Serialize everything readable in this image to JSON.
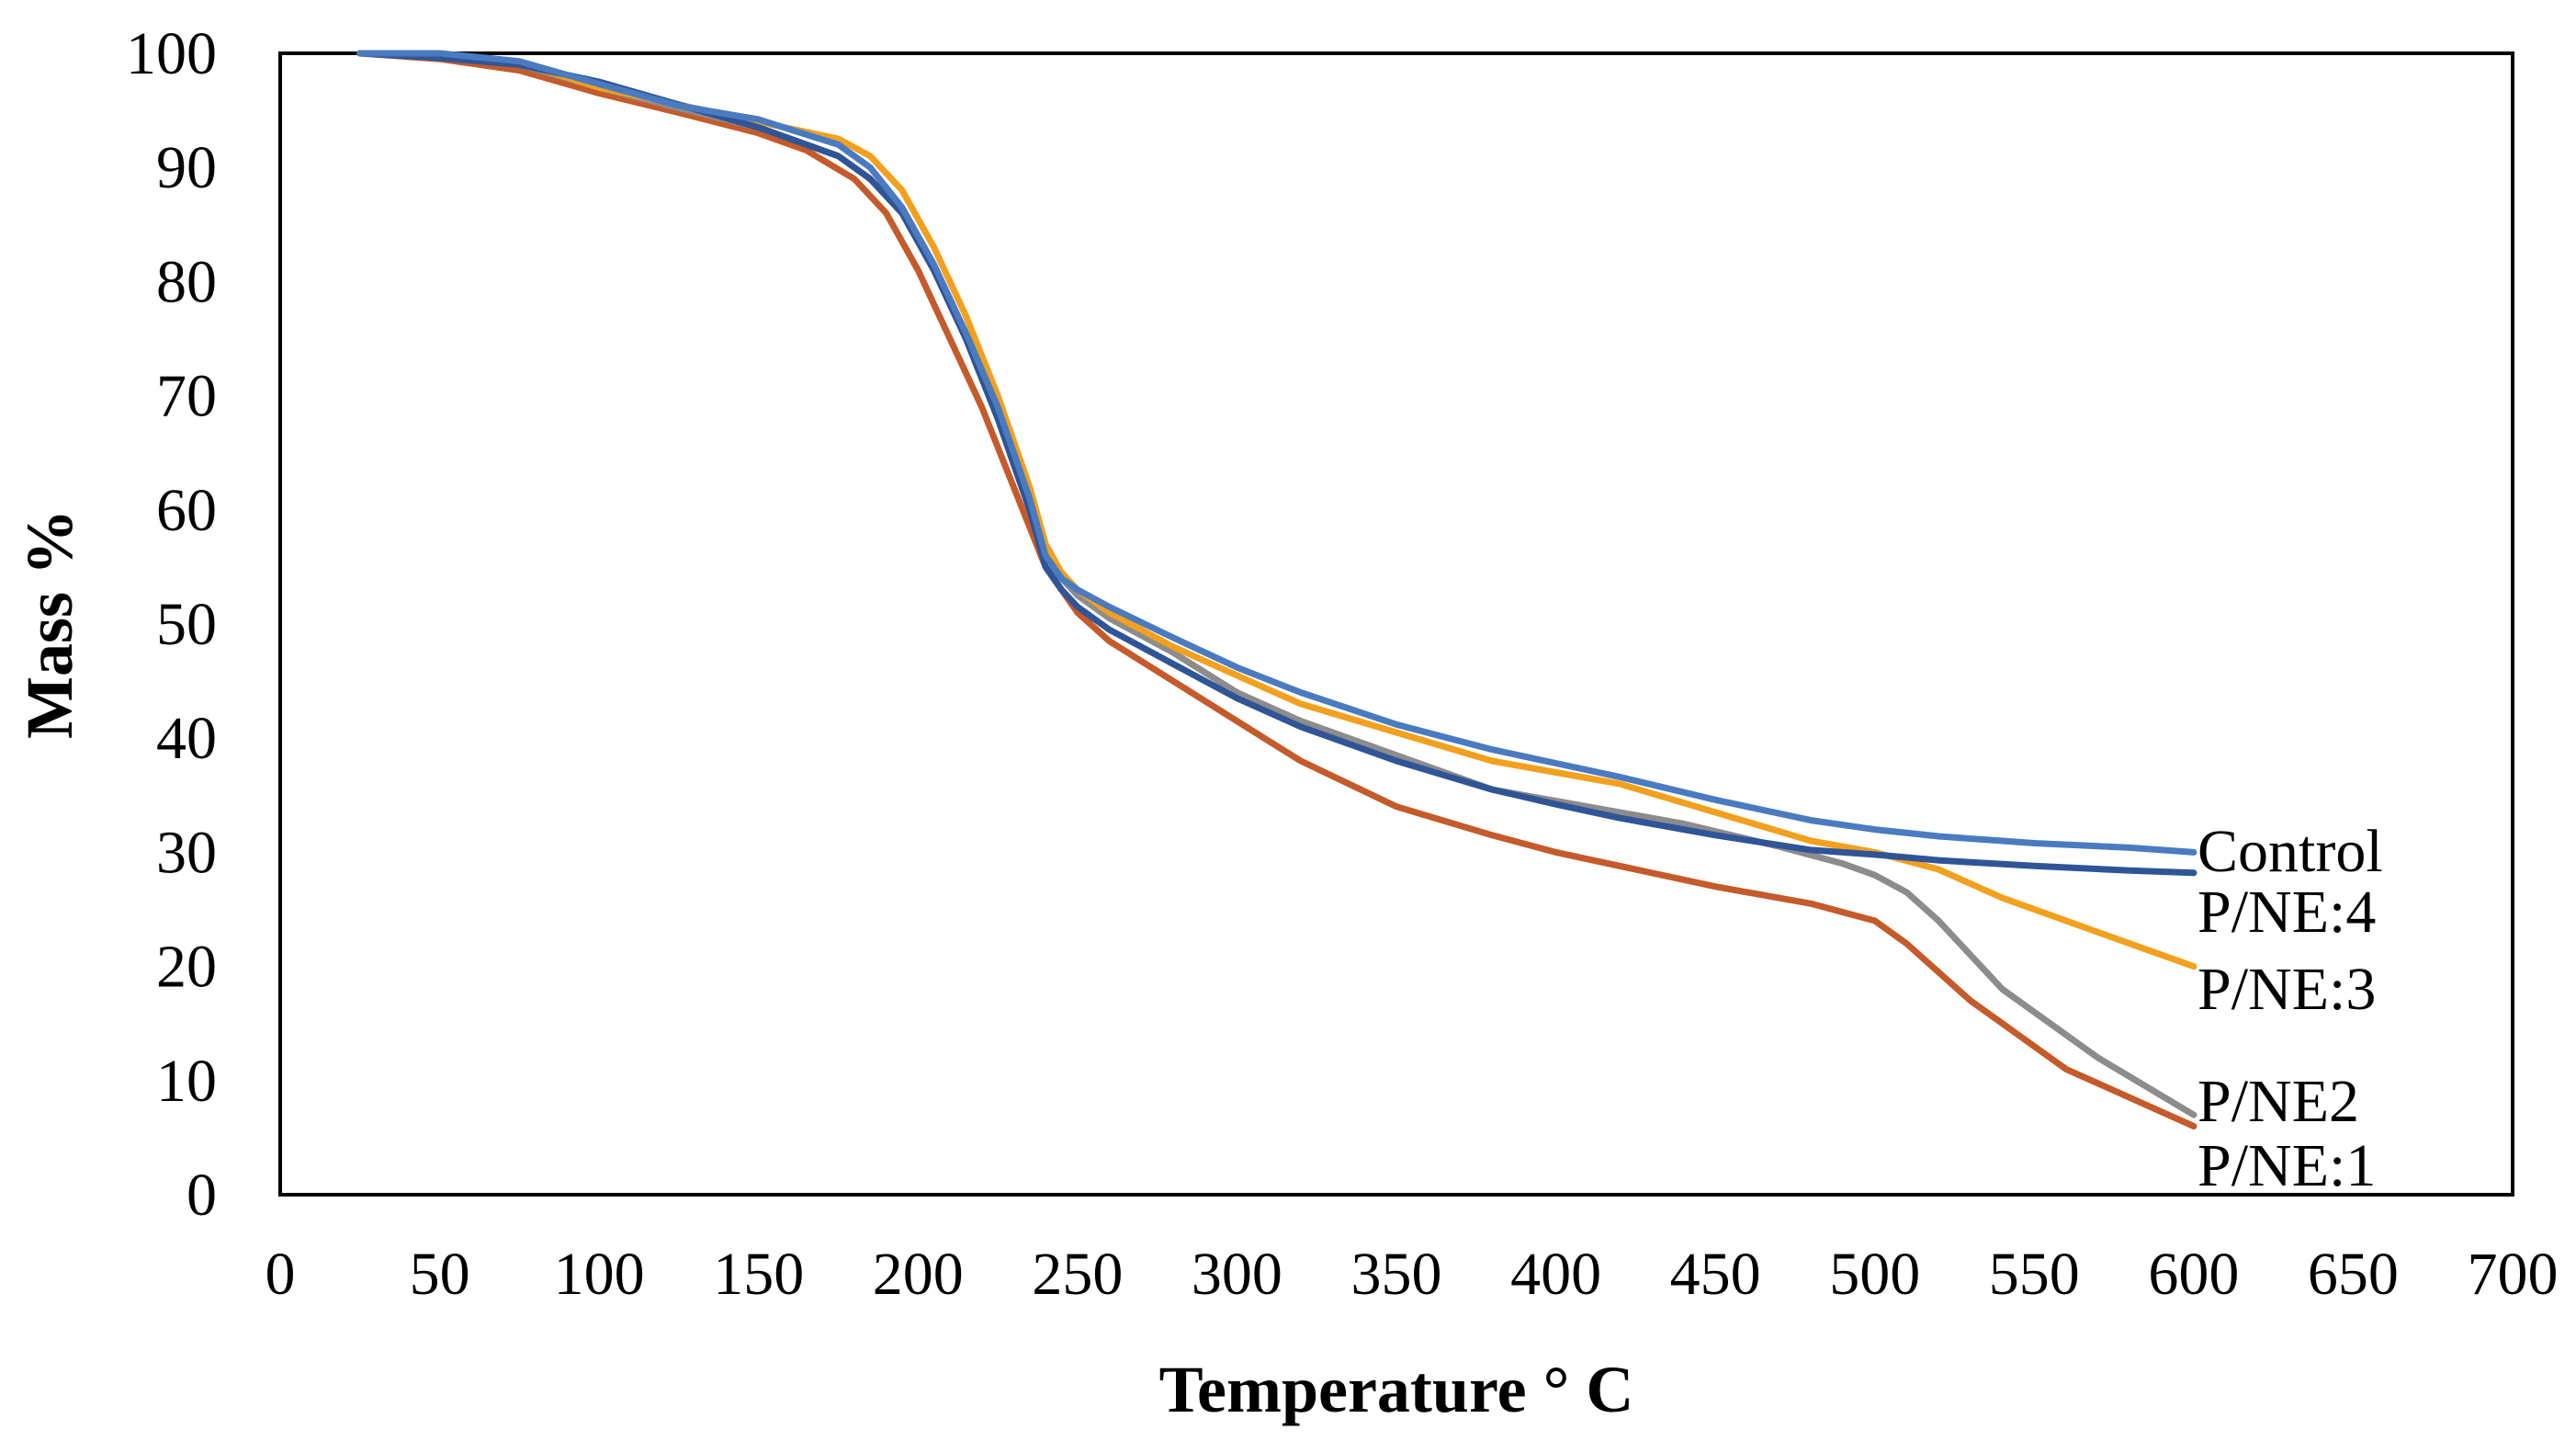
{
  "chart_data": {
    "type": "line",
    "title": "",
    "xlabel": "Temperature ° C",
    "ylabel": "Mass %",
    "xlim": [
      0,
      700
    ],
    "ylim": [
      0,
      100
    ],
    "xticks": [
      0,
      50,
      100,
      150,
      200,
      250,
      300,
      350,
      400,
      450,
      500,
      550,
      600,
      650,
      700
    ],
    "yticks": [
      0,
      10,
      20,
      30,
      40,
      50,
      60,
      70,
      80,
      90,
      100
    ],
    "grid": false,
    "legend": "inline labels at line ends (right)",
    "series": [
      {
        "name": "P/NE:1",
        "color": "#C55A2A",
        "x": [
          25,
          50,
          75,
          100,
          125,
          150,
          165,
          180,
          190,
          200,
          210,
          220,
          230,
          240,
          250,
          260,
          280,
          300,
          320,
          350,
          380,
          400,
          450,
          480,
          500,
          510,
          530,
          560,
          600
        ],
        "y": [
          100,
          99.5,
          98.5,
          96.5,
          94.8,
          93,
          91.5,
          89,
          86,
          81,
          75,
          69,
          62,
          55,
          51,
          48.5,
          45,
          41.5,
          38,
          34,
          31.5,
          30,
          27,
          25.5,
          24,
          22,
          17,
          11,
          6
        ]
      },
      {
        "name": "P/NE2",
        "color": "#8C8C8C",
        "x": [
          25,
          50,
          75,
          100,
          125,
          150,
          175,
          185,
          195,
          205,
          215,
          225,
          235,
          240,
          245,
          250,
          260,
          280,
          300,
          320,
          350,
          380,
          410,
          440,
          470,
          490,
          500,
          510,
          520,
          540,
          570,
          600
        ],
        "y": [
          100,
          99.7,
          99,
          97,
          95.2,
          93.5,
          91,
          89,
          86,
          81,
          75,
          68,
          60,
          56,
          54,
          52.5,
          50.5,
          47.5,
          44,
          41.5,
          38.5,
          35.5,
          34,
          32.5,
          30.5,
          29,
          28,
          26.5,
          24,
          18,
          12,
          7
        ]
      },
      {
        "name": "P/NE:3",
        "color": "#F2A01E",
        "x": [
          25,
          50,
          75,
          100,
          125,
          150,
          175,
          185,
          195,
          205,
          215,
          225,
          235,
          240,
          245,
          250,
          260,
          280,
          300,
          320,
          350,
          380,
          400,
          420,
          450,
          480,
          500,
          520,
          540,
          560,
          580,
          600
        ],
        "y": [
          100,
          99.8,
          99.2,
          97,
          95.5,
          94,
          92.5,
          91,
          88,
          83,
          77,
          70,
          62,
          57,
          54.5,
          53,
          51,
          48,
          45.5,
          43,
          40.5,
          38,
          37,
          36,
          33.5,
          31,
          30,
          28.5,
          26,
          24,
          22,
          20
        ]
      },
      {
        "name": "P/NE:4",
        "color": "#2F5597",
        "x": [
          25,
          50,
          75,
          100,
          125,
          150,
          175,
          185,
          195,
          205,
          215,
          225,
          235,
          240,
          245,
          250,
          260,
          280,
          300,
          320,
          350,
          380,
          400,
          420,
          450,
          480,
          500,
          520,
          550,
          580,
          600
        ],
        "y": [
          100,
          99.6,
          99,
          97.5,
          95.5,
          93.5,
          91,
          89,
          86,
          81,
          75,
          68,
          60,
          55,
          53,
          51.5,
          49.5,
          46.5,
          43.5,
          41,
          38,
          35.5,
          34.2,
          33,
          31.5,
          30.2,
          29.8,
          29.3,
          28.8,
          28.4,
          28.2
        ]
      },
      {
        "name": "Control",
        "color": "#4A7BC0",
        "x": [
          25,
          50,
          75,
          100,
          125,
          150,
          175,
          185,
          195,
          205,
          215,
          225,
          235,
          240,
          245,
          250,
          260,
          280,
          300,
          320,
          350,
          380,
          400,
          420,
          450,
          480,
          500,
          520,
          550,
          580,
          600
        ],
        "y": [
          100,
          100,
          99.3,
          97.3,
          95.4,
          94.2,
          92,
          90,
          86.5,
          81.5,
          75.5,
          69,
          61,
          56,
          54,
          53,
          51.5,
          48.8,
          46.2,
          44,
          41.2,
          39,
          37.8,
          36.6,
          34.6,
          32.8,
          32,
          31.4,
          30.8,
          30.4,
          30
        ]
      }
    ]
  }
}
